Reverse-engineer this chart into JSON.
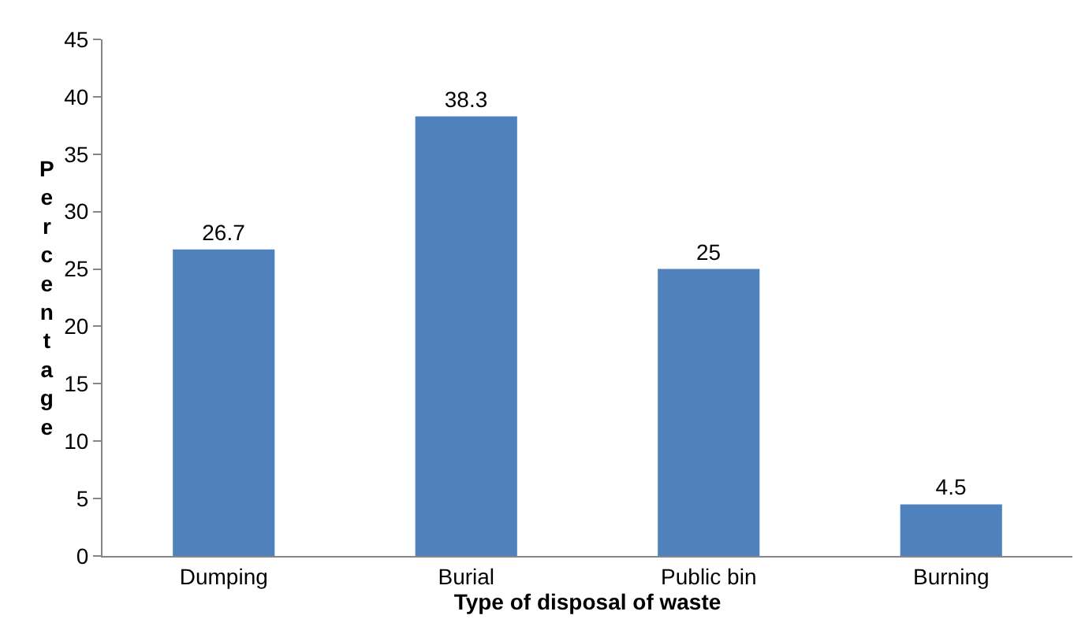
{
  "chart_data": {
    "type": "bar",
    "xlabel": "Type of disposal of waste",
    "ylabel": "Percentage",
    "categories": [
      "Dumping",
      "Burial",
      "Public bin",
      "Burning"
    ],
    "values": [
      26.7,
      38.3,
      25,
      4.5
    ],
    "color": "#4f81bd",
    "ylim": [
      0,
      45
    ],
    "yticks": [
      0,
      5,
      10,
      15,
      20,
      25,
      30,
      35,
      40,
      45
    ],
    "data_labels": true
  }
}
